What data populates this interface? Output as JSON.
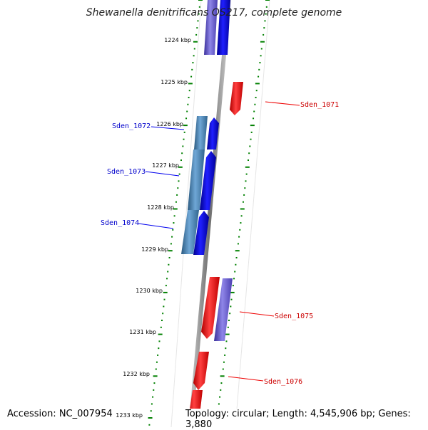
{
  "title": "Shewanella denitrificans OS217, complete genome",
  "footer": {
    "accession": "Accession: NC_007954",
    "summary": "Topology: circular; Length: 4,545,906 bp; Genes: 3,880"
  },
  "colors": {
    "forward_gene": "#0000ee",
    "forward_gene_light": "#6a5acd",
    "forward_gene_steel": "#4682b4",
    "reverse_gene": "#ee0000",
    "tick": "#008000",
    "backbone": "#808080"
  },
  "scale_ticks": [
    {
      "label": "1224 kbp",
      "kbp": 1224
    },
    {
      "label": "1225 kbp",
      "kbp": 1225
    },
    {
      "label": "1226 kbp",
      "kbp": 1226
    },
    {
      "label": "1227 kbp",
      "kbp": 1227
    },
    {
      "label": "1228 kbp",
      "kbp": 1228
    },
    {
      "label": "1229 kbp",
      "kbp": 1229
    },
    {
      "label": "1230 kbp",
      "kbp": 1230
    },
    {
      "label": "1231 kbp",
      "kbp": 1231
    },
    {
      "label": "1232 kbp",
      "kbp": 1232
    },
    {
      "label": "1233 kbp",
      "kbp": 1233
    }
  ],
  "gene_labels": [
    {
      "name": "Sden_1071",
      "strand": "reverse"
    },
    {
      "name": "Sden_1072",
      "strand": "forward"
    },
    {
      "name": "Sden_1073",
      "strand": "forward"
    },
    {
      "name": "Sden_1074",
      "strand": "forward"
    },
    {
      "name": "Sden_1075",
      "strand": "reverse"
    },
    {
      "name": "Sden_1076",
      "strand": "reverse"
    }
  ]
}
